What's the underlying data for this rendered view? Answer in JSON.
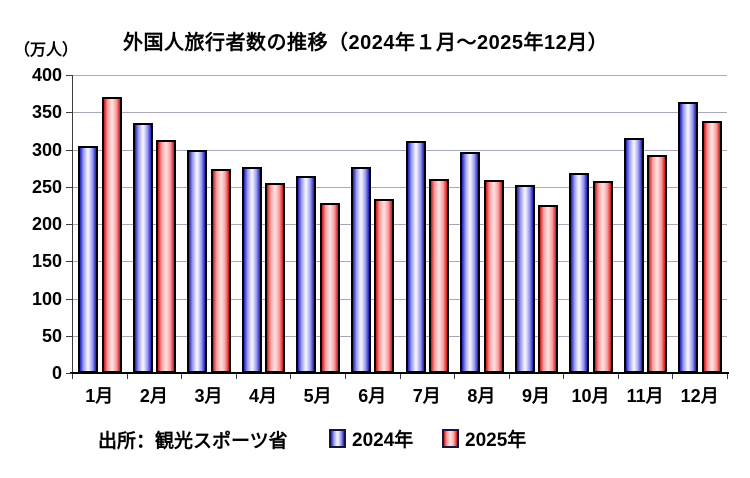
{
  "title": "外国人旅行者数の推移（2024年１月～2025年12月）",
  "y_axis_unit": "（万人）",
  "source_label": "出所：観光スポーツ省",
  "legend": {
    "items": [
      {
        "label": "2024年",
        "swatch": "blue-gradient-swatch"
      },
      {
        "label": "2025年",
        "swatch": "red-gradient-swatch"
      }
    ],
    "position": "bottom"
  },
  "chart_data": {
    "type": "bar",
    "title": "外国人旅行者数の推移（2024年１月～2025年12月）",
    "xlabel": "",
    "ylabel": "（万人）",
    "categories": [
      "1月",
      "2月",
      "3月",
      "4月",
      "5月",
      "6月",
      "7月",
      "8月",
      "9月",
      "10月",
      "11月",
      "12月"
    ],
    "series": [
      {
        "name": "2024年",
        "values": [
          305,
          336,
          300,
          277,
          264,
          276,
          312,
          297,
          252,
          269,
          316,
          364
        ]
      },
      {
        "name": "2025年",
        "values": [
          371,
          313,
          274,
          255,
          228,
          233,
          261,
          259,
          225,
          258,
          293,
          338
        ]
      }
    ],
    "ylim": [
      0,
      400
    ],
    "ytick_interval": 50,
    "y_tick_labels": [
      "400",
      "350",
      "300",
      "250",
      "200",
      "150",
      "100",
      "50",
      "0"
    ],
    "grid": true,
    "legend_position": "bottom"
  },
  "colors": {
    "series": [
      {
        "name": "2024年",
        "edge": "#1e1ec0",
        "mid": "#9a9af0",
        "center": "#efefff"
      },
      {
        "name": "2025年",
        "edge": "#cf1616",
        "mid": "#f89a9a",
        "center": "#ffdcdc"
      }
    ],
    "bar_outline": "#000000",
    "gridline": "#a8a8b8",
    "axis": "#3c3c3c",
    "axis_bottom": "#000000",
    "text": "#000000",
    "background": "#ffffff"
  }
}
